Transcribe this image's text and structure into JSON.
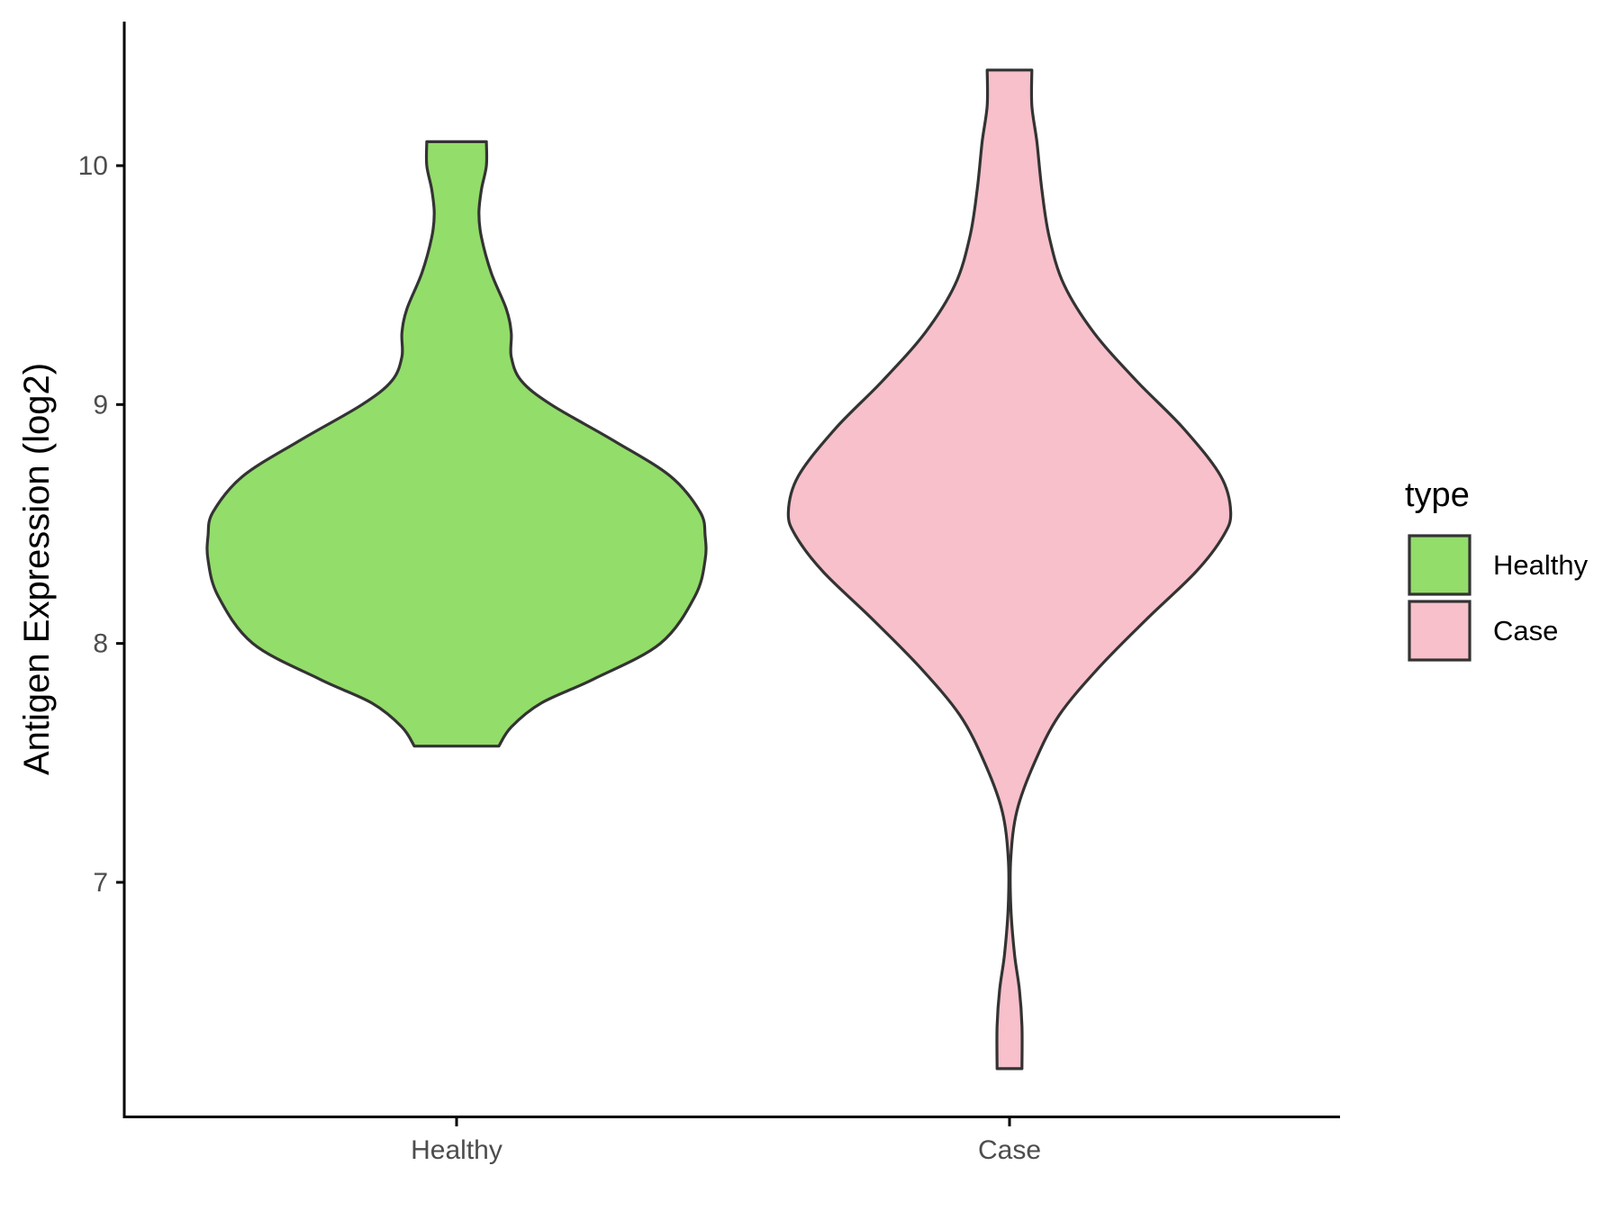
{
  "chart_data": {
    "type": "violin",
    "title": "",
    "xlabel": "",
    "ylabel": "Antigen Expression (log2)",
    "categories": [
      "Healthy",
      "Case"
    ],
    "ylim": [
      6.0,
      10.6
    ],
    "yticks": [
      7,
      8,
      9,
      10
    ],
    "grid": false,
    "legend": {
      "title": "type",
      "position": "right",
      "entries": [
        "Healthy",
        "Case"
      ]
    },
    "series": [
      {
        "name": "Healthy",
        "color": "#93dd6a",
        "min": 7.57,
        "max": 10.1,
        "density": [
          [
            7.57,
            0.17
          ],
          [
            7.65,
            0.22
          ],
          [
            7.75,
            0.34
          ],
          [
            7.85,
            0.55
          ],
          [
            8.0,
            0.82
          ],
          [
            8.2,
            0.96
          ],
          [
            8.35,
            1.0
          ],
          [
            8.45,
            1.0
          ],
          [
            8.55,
            0.98
          ],
          [
            8.7,
            0.86
          ],
          [
            8.85,
            0.63
          ],
          [
            9.0,
            0.38
          ],
          [
            9.1,
            0.26
          ],
          [
            9.2,
            0.22
          ],
          [
            9.3,
            0.22
          ],
          [
            9.4,
            0.2
          ],
          [
            9.55,
            0.14
          ],
          [
            9.7,
            0.1
          ],
          [
            9.8,
            0.09
          ],
          [
            9.9,
            0.1
          ],
          [
            10.0,
            0.12
          ],
          [
            10.1,
            0.12
          ]
        ]
      },
      {
        "name": "Case",
        "color": "#f7c0cb",
        "min": 6.22,
        "max": 10.4,
        "density": [
          [
            6.22,
            0.05
          ],
          [
            6.4,
            0.05
          ],
          [
            6.55,
            0.04
          ],
          [
            6.7,
            0.02
          ],
          [
            6.9,
            0.005
          ],
          [
            7.1,
            0.005
          ],
          [
            7.3,
            0.03
          ],
          [
            7.5,
            0.1
          ],
          [
            7.7,
            0.2
          ],
          [
            7.9,
            0.36
          ],
          [
            8.1,
            0.55
          ],
          [
            8.3,
            0.75
          ],
          [
            8.45,
            0.86
          ],
          [
            8.55,
            0.89
          ],
          [
            8.7,
            0.85
          ],
          [
            8.9,
            0.7
          ],
          [
            9.1,
            0.51
          ],
          [
            9.3,
            0.34
          ],
          [
            9.5,
            0.22
          ],
          [
            9.7,
            0.16
          ],
          [
            9.9,
            0.13
          ],
          [
            10.1,
            0.11
          ],
          [
            10.25,
            0.09
          ],
          [
            10.4,
            0.09
          ]
        ]
      }
    ]
  }
}
